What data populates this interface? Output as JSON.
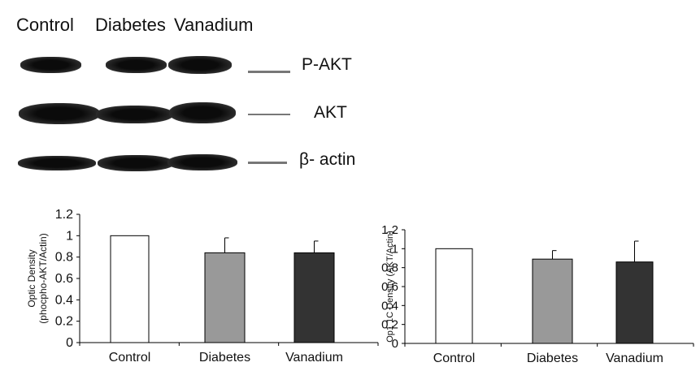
{
  "lanes": [
    "Control",
    "Diabetes",
    "Vanadium"
  ],
  "markers": [
    "P-AKT",
    "AKT",
    "β- actin"
  ],
  "chart_data": [
    {
      "type": "bar",
      "categories": [
        "Control",
        "Diabetes",
        "Vanadium"
      ],
      "values": [
        1.0,
        0.84,
        0.84
      ],
      "errors": [
        0,
        0.14,
        0.11
      ],
      "ylabel": "Optic Density\n(phocpho-AKT/Actin)",
      "ylim": [
        0,
        1.2
      ],
      "yticks": [
        "0",
        "0.2",
        "0.4",
        "0.6",
        "0.8",
        "1",
        "1.2"
      ],
      "bar_colors": [
        "#ffffff",
        "#999999",
        "#333333"
      ]
    },
    {
      "type": "bar",
      "categories": [
        "Control",
        "Diabetes",
        "Vanadium"
      ],
      "values": [
        1.0,
        0.89,
        0.86
      ],
      "errors": [
        0,
        0.09,
        0.22
      ],
      "ylabel": "Op1 1C Denstty (AKT/Actin)",
      "ylim": [
        0,
        1.2
      ],
      "yticks": [
        "0",
        "0.2",
        "0.4",
        "0.6",
        "0.8",
        "1",
        "1.2"
      ],
      "bar_colors": [
        "#ffffff",
        "#999999",
        "#333333"
      ]
    }
  ]
}
